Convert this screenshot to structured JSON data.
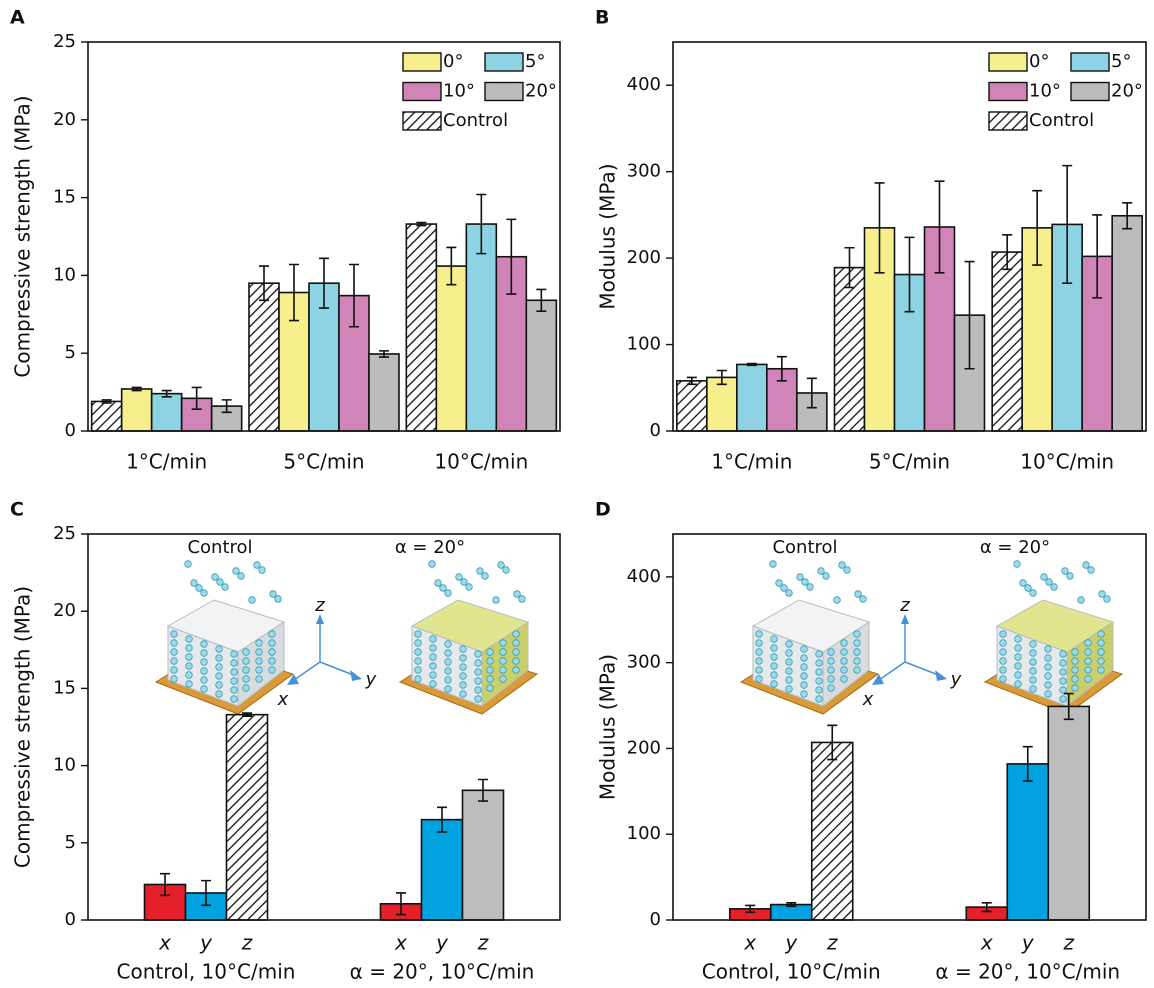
{
  "chart_data": [
    {
      "type": "bar",
      "panel_label": "A",
      "y_label": "Compressive strength (MPa)",
      "categories": [
        "1°C/min",
        "5°C/min",
        "10°C/min"
      ],
      "series": [
        {
          "name": "Control",
          "color": "#ffffff",
          "hatch": true,
          "values": [
            1.9,
            9.5,
            13.3
          ],
          "errors": [
            0.1,
            1.1,
            0.1
          ]
        },
        {
          "name": "0°",
          "color": "#f6ef8b",
          "values": [
            2.7,
            8.9,
            10.6
          ],
          "errors": [
            0.1,
            1.8,
            1.2
          ]
        },
        {
          "name": "5°",
          "color": "#8ed3e3",
          "values": [
            2.4,
            9.5,
            13.3
          ],
          "errors": [
            0.2,
            1.6,
            1.9
          ]
        },
        {
          "name": "10°",
          "color": "#d184b8",
          "values": [
            2.1,
            8.7,
            11.2
          ],
          "errors": [
            0.7,
            2.0,
            2.4
          ]
        },
        {
          "name": "20°",
          "color": "#bcbcbd",
          "values": [
            1.6,
            4.95,
            8.4
          ],
          "errors": [
            0.4,
            0.2,
            0.7
          ]
        }
      ],
      "ylim": [
        0,
        25
      ],
      "yticks": [
        0,
        5,
        10,
        15,
        20,
        25
      ],
      "legend": "upper right"
    },
    {
      "type": "bar",
      "panel_label": "B",
      "y_label": "Modulus (MPa)",
      "categories": [
        "1°C/min",
        "5°C/min",
        "10°C/min"
      ],
      "series": [
        {
          "name": "Control",
          "color": "#ffffff",
          "hatch": true,
          "values": [
            58,
            189,
            207
          ],
          "errors": [
            4,
            23,
            20
          ]
        },
        {
          "name": "0°",
          "color": "#f6ef8b",
          "values": [
            62,
            235,
            235
          ],
          "errors": [
            8,
            52,
            43
          ]
        },
        {
          "name": "5°",
          "color": "#8ed3e3",
          "values": [
            77,
            181,
            239
          ],
          "errors": [
            1,
            43,
            68
          ]
        },
        {
          "name": "10°",
          "color": "#d184b8",
          "values": [
            72,
            236,
            202
          ],
          "errors": [
            14,
            53,
            48
          ]
        },
        {
          "name": "20°",
          "color": "#bcbcbd",
          "values": [
            44,
            134,
            249
          ],
          "errors": [
            17,
            62,
            15
          ]
        }
      ],
      "ylim": [
        0,
        450
      ],
      "yticks": [
        0,
        100,
        200,
        300,
        400
      ],
      "legend": "upper right"
    },
    {
      "type": "grouped-bar",
      "panel_label": "C",
      "y_label": "Compressive strength (MPa)",
      "inset_labels": [
        "Control",
        "α = 20°"
      ],
      "inset_axes": [
        "z",
        "x",
        "y"
      ],
      "groups": [
        {
          "name": "Control, 10°C/min",
          "categories": [
            "x",
            "y",
            "z"
          ],
          "values": [
            2.3,
            1.75,
            13.3
          ],
          "errors": [
            0.7,
            0.8,
            0.1
          ],
          "colors": [
            "#e5202a",
            "#00a2e0",
            "#ffffff"
          ],
          "hatch": [
            false,
            false,
            true
          ]
        },
        {
          "name": "α = 20°, 10°C/min",
          "categories": [
            "x",
            "y",
            "z"
          ],
          "values": [
            1.05,
            6.5,
            8.4
          ],
          "errors": [
            0.7,
            0.8,
            0.7
          ],
          "colors": [
            "#e5202a",
            "#00a2e0",
            "#bdbdbd"
          ],
          "hatch": [
            false,
            false,
            false
          ]
        }
      ],
      "ylim": [
        0,
        25
      ],
      "yticks": [
        0,
        5,
        10,
        15,
        20,
        25
      ]
    },
    {
      "type": "grouped-bar",
      "panel_label": "D",
      "y_label": "Modulus (MPa)",
      "inset_labels": [
        "Control",
        "α = 20°"
      ],
      "inset_axes": [
        "z",
        "x",
        "y"
      ],
      "groups": [
        {
          "name": "Control, 10°C/min",
          "categories": [
            "x",
            "y",
            "z"
          ],
          "values": [
            13,
            18,
            207
          ],
          "errors": [
            4,
            2,
            20
          ],
          "colors": [
            "#e5202a",
            "#00a2e0",
            "#ffffff"
          ],
          "hatch": [
            false,
            false,
            true
          ]
        },
        {
          "name": "α = 20°, 10°C/min",
          "categories": [
            "x",
            "y",
            "z"
          ],
          "values": [
            15,
            182,
            249
          ],
          "errors": [
            5,
            20,
            15
          ],
          "colors": [
            "#e5202a",
            "#00a2e0",
            "#bdbdbd"
          ],
          "hatch": [
            false,
            false,
            false
          ]
        }
      ],
      "ylim": [
        0,
        450
      ],
      "yticks": [
        0,
        100,
        200,
        300,
        400
      ]
    }
  ]
}
